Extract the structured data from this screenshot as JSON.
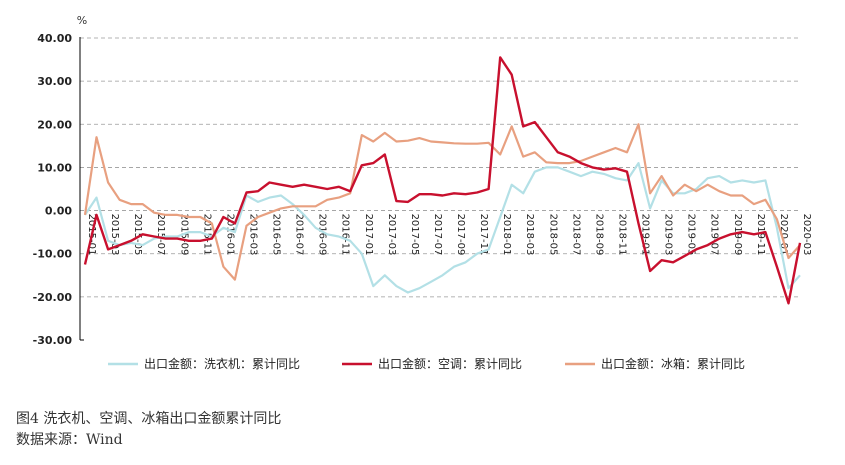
{
  "chart_data": {
    "type": "line",
    "unit_label": "%",
    "ylim": [
      -30,
      40
    ],
    "yticks": [
      "40.00",
      "30.00",
      "20.00",
      "10.00",
      "0.00",
      "-10.00",
      "-20.00",
      "-30.00"
    ],
    "ytick_values": [
      40,
      30,
      20,
      10,
      0,
      -10,
      -20,
      -30
    ],
    "x": [
      "2015-01",
      "2015-02",
      "2015-03",
      "2015-04",
      "2015-05",
      "2015-06",
      "2015-07",
      "2015-08",
      "2015-09",
      "2015-10",
      "2015-11",
      "2015-12",
      "2016-01",
      "2016-02",
      "2016-03",
      "2016-04",
      "2016-05",
      "2016-06",
      "2016-07",
      "2016-08",
      "2016-09",
      "2016-10",
      "2016-11",
      "2016-12",
      "2017-01",
      "2017-02",
      "2017-03",
      "2017-04",
      "2017-05",
      "2017-06",
      "2017-07",
      "2017-08",
      "2017-09",
      "2017-10",
      "2017-11",
      "2017-12",
      "2018-01",
      "2018-02",
      "2018-03",
      "2018-04",
      "2018-05",
      "2018-06",
      "2018-07",
      "2018-08",
      "2018-09",
      "2018-10",
      "2018-11",
      "2018-12",
      "2019-01",
      "2019-02",
      "2019-03",
      "2019-04",
      "2019-05",
      "2019-06",
      "2019-07",
      "2019-08",
      "2019-09",
      "2019-10",
      "2019-11",
      "2019-12",
      "2020-01",
      "2020-02",
      "2020-03"
    ],
    "xtick_labels": [
      "2015-01",
      "2015-03",
      "2015-05",
      "2015-07",
      "2015-09",
      "2015-11",
      "2016-01",
      "2016-03",
      "2016-05",
      "2016-07",
      "2016-09",
      "2016-11",
      "2017-01",
      "2017-03",
      "2017-05",
      "2017-07",
      "2017-09",
      "2017-11",
      "2018-01",
      "2018-03",
      "2018-05",
      "2018-07",
      "2018-09",
      "2018-11",
      "2019-01",
      "2019-03",
      "2019-05",
      "2019-07",
      "2019-09",
      "2019-11",
      "2020-01",
      "2020-03"
    ],
    "grid": true,
    "legend_placement": "bottom",
    "series": [
      {
        "name": "出口金额：洗衣机：累计同比",
        "color": "#b3e0e6",
        "values": [
          -1,
          3,
          -7,
          -8,
          -7.5,
          -8,
          -6.5,
          -6,
          -6,
          -5,
          -5,
          -6,
          -4,
          -5,
          3.5,
          2,
          3,
          3.5,
          1.5,
          -1,
          -4,
          -5.5,
          -6,
          -7,
          -10,
          -17.5,
          -15,
          -17.5,
          -19,
          -18,
          -16.5,
          -15,
          -13,
          -12,
          -10,
          -9,
          -1.5,
          6,
          4,
          9,
          10,
          10,
          9,
          8,
          9,
          8.5,
          7.5,
          7,
          11,
          0.5,
          7,
          4,
          4,
          5,
          7.5,
          8,
          6.5,
          7,
          6.5,
          7,
          -4,
          -18,
          -15
        ]
      },
      {
        "name": "出口金额：空调：累计同比",
        "color": "#c8102e",
        "values": [
          -12.5,
          -1,
          -9,
          -8,
          -7,
          -5.5,
          -6,
          -6.5,
          -6.5,
          -7,
          -7,
          -6.5,
          -1.5,
          -3,
          4.2,
          4.5,
          6.5,
          6,
          5.5,
          6,
          5.5,
          5,
          5.5,
          4.5,
          10.5,
          11,
          13,
          2.2,
          2,
          3.8,
          3.8,
          3.5,
          4,
          3.8,
          4.2,
          5,
          35.5,
          31.5,
          19.5,
          20.5,
          17,
          13.5,
          12.5,
          11,
          10,
          9.5,
          9.8,
          9,
          -3,
          -14,
          -11.5,
          -12,
          -10.5,
          -9,
          -8,
          -6.5,
          -5.5,
          -5,
          -5.5,
          -5,
          -13,
          -21.5,
          -7.5
        ]
      },
      {
        "name": "出口金额：冰箱：累计同比",
        "color": "#e8a080",
        "values": [
          -1,
          17,
          6.5,
          2.5,
          1.5,
          1.5,
          -0.5,
          -1,
          -1,
          -1.5,
          -1.5,
          -3,
          -13,
          -16,
          -3.5,
          -1.5,
          -0.5,
          0.5,
          1,
          1,
          1,
          2.5,
          3,
          4,
          17.5,
          16,
          18,
          16,
          16.2,
          16.8,
          16,
          15.8,
          15.6,
          15.5,
          15.5,
          15.7,
          13,
          19.5,
          12.5,
          13.5,
          11.2,
          11,
          11,
          11.5,
          12.5,
          13.5,
          14.5,
          13.5,
          20,
          4,
          8,
          3.5,
          6,
          4.5,
          6,
          4.5,
          3.5,
          3.5,
          1.5,
          2.5,
          -2,
          -11,
          -8
        ]
      }
    ]
  },
  "caption": {
    "figure": "图4   洗衣机、空调、冰箱出口金额累计同比",
    "source": "数据来源：Wind"
  }
}
